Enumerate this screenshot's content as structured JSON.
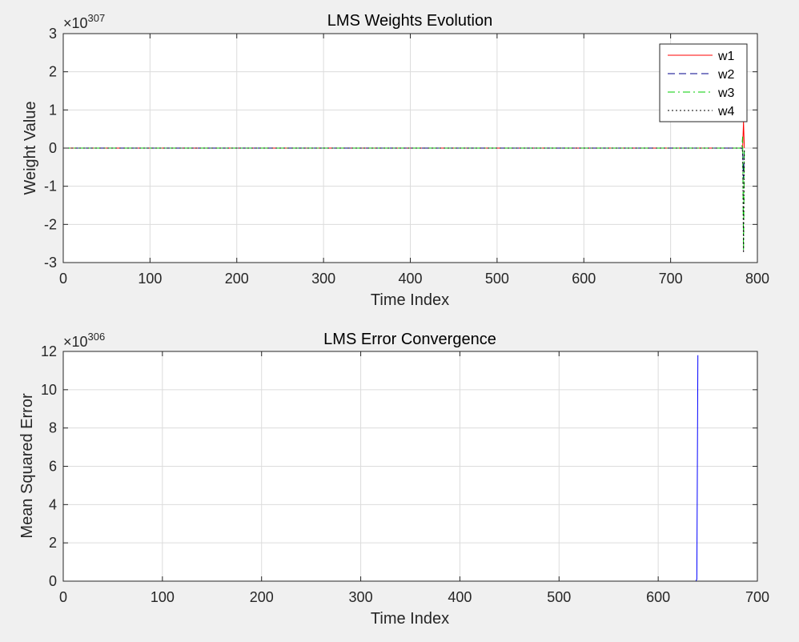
{
  "chart_data": [
    {
      "type": "line",
      "title": "LMS Weights Evolution",
      "xlabel": "Time Index",
      "ylabel": "Weight Value",
      "xlim": [
        0,
        800
      ],
      "ylim": [
        -3,
        3
      ],
      "y_exponent": "307",
      "x_ticks": [
        0,
        100,
        200,
        300,
        400,
        500,
        600,
        700,
        800
      ],
      "y_ticks": [
        -3,
        -2,
        -1,
        0,
        1,
        2,
        3
      ],
      "grid": true,
      "legend": "top-right",
      "series": [
        {
          "name": "w1",
          "color": "#ff0000",
          "style": "solid",
          "x": [
            0,
            782,
            783,
            784,
            785
          ],
          "y": [
            0,
            0,
            0.02,
            0.7,
            0
          ]
        },
        {
          "name": "w2",
          "color": "#00008b",
          "style": "dashed",
          "x": [
            0,
            782,
            783,
            784,
            785
          ],
          "y": [
            0,
            0,
            -0.05,
            -0.8,
            0
          ]
        },
        {
          "name": "w3",
          "color": "#00cc00",
          "style": "dashdot",
          "x": [
            0,
            782,
            783,
            784,
            785
          ],
          "y": [
            0,
            0,
            0.3,
            -2.7,
            0
          ]
        },
        {
          "name": "w4",
          "color": "#000000",
          "style": "dotted",
          "x": [
            0,
            782,
            783,
            784,
            785
          ],
          "y": [
            0,
            0,
            -0.1,
            -2.75,
            0
          ]
        }
      ]
    },
    {
      "type": "line",
      "title": "LMS Error Convergence",
      "xlabel": "Time Index",
      "ylabel": "Mean Squared Error",
      "xlim": [
        0,
        700
      ],
      "ylim": [
        0,
        12
      ],
      "y_exponent": "306",
      "x_ticks": [
        0,
        100,
        200,
        300,
        400,
        500,
        600,
        700
      ],
      "y_ticks": [
        0,
        2,
        4,
        6,
        8,
        10,
        12
      ],
      "grid": true,
      "series": [
        {
          "color": "#0000ff",
          "style": "solid",
          "x": [
            0,
            638,
            639,
            640
          ],
          "y": [
            0,
            0,
            0.1,
            11.8
          ]
        }
      ]
    }
  ]
}
